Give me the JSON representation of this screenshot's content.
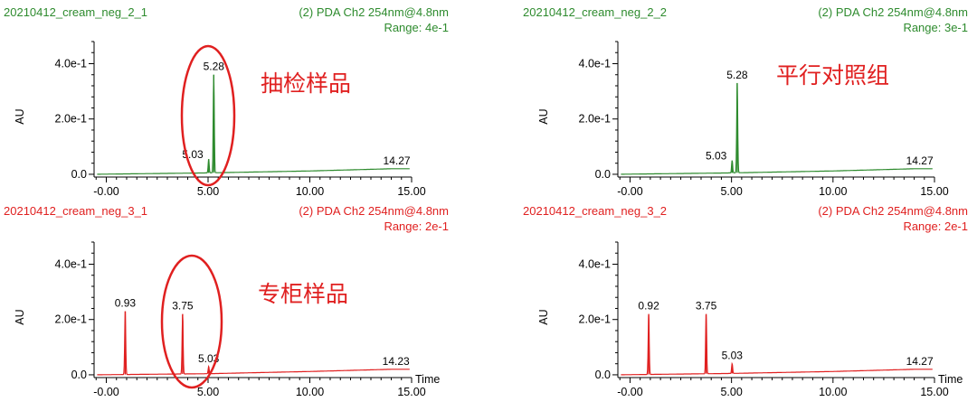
{
  "chart_data": [
    {
      "type": "line",
      "sample_name": "20210412_cream_neg_2_1",
      "channel": "(2) PDA Ch2 254nm@4.8nm",
      "range_label": "Range: 4e-1",
      "ylabel": "AU",
      "xlabel": "",
      "color": "#2e8b2e",
      "x_ticks": [
        "-0.00",
        "5.00",
        "10.00",
        "15.00"
      ],
      "y_ticks": [
        "0.0",
        "2.0e-1",
        "4.0e-1"
      ],
      "xlim": [
        -0.6,
        15.0
      ],
      "ylim": [
        -0.01,
        0.48
      ],
      "baseline": [
        [
          -0.6,
          0.0
        ],
        [
          5.0,
          0.005
        ],
        [
          10.0,
          0.012
        ],
        [
          14.0,
          0.02
        ],
        [
          15.0,
          0.02
        ]
      ],
      "peaks": [
        {
          "x": 5.03,
          "y": 0.055,
          "label": "5.03"
        },
        {
          "x": 5.28,
          "y": 0.36,
          "label": "5.28"
        },
        {
          "x": 14.27,
          "y": 0.02,
          "label": "14.27"
        }
      ],
      "annotation": "抽检样品",
      "circle": true
    },
    {
      "type": "line",
      "sample_name": "20210412_cream_neg_2_2",
      "channel": "(2) PDA Ch2 254nm@4.8nm",
      "range_label": "Range: 3e-1",
      "ylabel": "AU",
      "xlabel": "",
      "color": "#2e8b2e",
      "x_ticks": [
        "-0.00",
        "5.00",
        "10.00",
        "15.00"
      ],
      "y_ticks": [
        "0.0",
        "2.0e-1",
        "4.0e-1"
      ],
      "xlim": [
        -0.6,
        15.0
      ],
      "ylim": [
        -0.01,
        0.48
      ],
      "baseline": [
        [
          -0.6,
          0.0
        ],
        [
          5.0,
          0.005
        ],
        [
          10.0,
          0.012
        ],
        [
          14.0,
          0.02
        ],
        [
          15.0,
          0.02
        ]
      ],
      "peaks": [
        {
          "x": 5.03,
          "y": 0.05,
          "label": "5.03"
        },
        {
          "x": 5.28,
          "y": 0.33,
          "label": "5.28"
        },
        {
          "x": 14.27,
          "y": 0.02,
          "label": "14.27"
        }
      ],
      "annotation": "平行对照组",
      "circle": false
    },
    {
      "type": "line",
      "sample_name": "20210412_cream_neg_3_1",
      "channel": "(2) PDA Ch2 254nm@4.8nm",
      "range_label": "Range: 2e-1",
      "ylabel": "AU",
      "xlabel": "Time",
      "color": "#e02020",
      "x_ticks": [
        "-0.00",
        "5.00",
        "10.00",
        "15.00"
      ],
      "y_ticks": [
        "0.0",
        "2.0e-1",
        "4.0e-1"
      ],
      "xlim": [
        -0.6,
        15.0
      ],
      "ylim": [
        -0.01,
        0.48
      ],
      "baseline": [
        [
          -0.6,
          0.0
        ],
        [
          5.0,
          0.004
        ],
        [
          10.0,
          0.012
        ],
        [
          14.0,
          0.02
        ],
        [
          15.0,
          0.02
        ]
      ],
      "peaks": [
        {
          "x": 0.93,
          "y": 0.23,
          "label": "0.93"
        },
        {
          "x": 3.75,
          "y": 0.22,
          "label": "3.75"
        },
        {
          "x": 5.03,
          "y": 0.03,
          "label": "5.03"
        },
        {
          "x": 14.23,
          "y": 0.02,
          "label": "14.23"
        }
      ],
      "annotation": "专柜样品",
      "circle": true
    },
    {
      "type": "line",
      "sample_name": "20210412_cream_neg_3_2",
      "channel": "(2) PDA Ch2 254nm@4.8nm",
      "range_label": "Range: 2e-1",
      "ylabel": "AU",
      "xlabel": "Time",
      "color": "#e02020",
      "x_ticks": [
        "-0.00",
        "5.00",
        "10.00",
        "15.00"
      ],
      "y_ticks": [
        "0.0",
        "2.0e-1",
        "4.0e-1"
      ],
      "xlim": [
        -0.6,
        15.0
      ],
      "ylim": [
        -0.01,
        0.48
      ],
      "baseline": [
        [
          -0.6,
          0.0
        ],
        [
          5.0,
          0.005
        ],
        [
          10.0,
          0.012
        ],
        [
          14.0,
          0.02
        ],
        [
          15.0,
          0.02
        ]
      ],
      "peaks": [
        {
          "x": 0.92,
          "y": 0.22,
          "label": "0.92"
        },
        {
          "x": 3.75,
          "y": 0.22,
          "label": "3.75"
        },
        {
          "x": 5.03,
          "y": 0.04,
          "label": "5.03"
        },
        {
          "x": 14.27,
          "y": 0.02,
          "label": "14.27"
        }
      ],
      "annotation": "",
      "circle": false
    }
  ]
}
